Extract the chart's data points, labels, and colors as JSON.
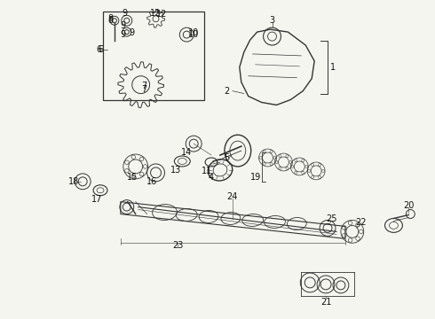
{
  "bg_color": "#f5f5f0",
  "line_color": "#333333",
  "text_color": "#111111",
  "fig_width": 4.9,
  "fig_height": 3.6,
  "dpi": 100
}
